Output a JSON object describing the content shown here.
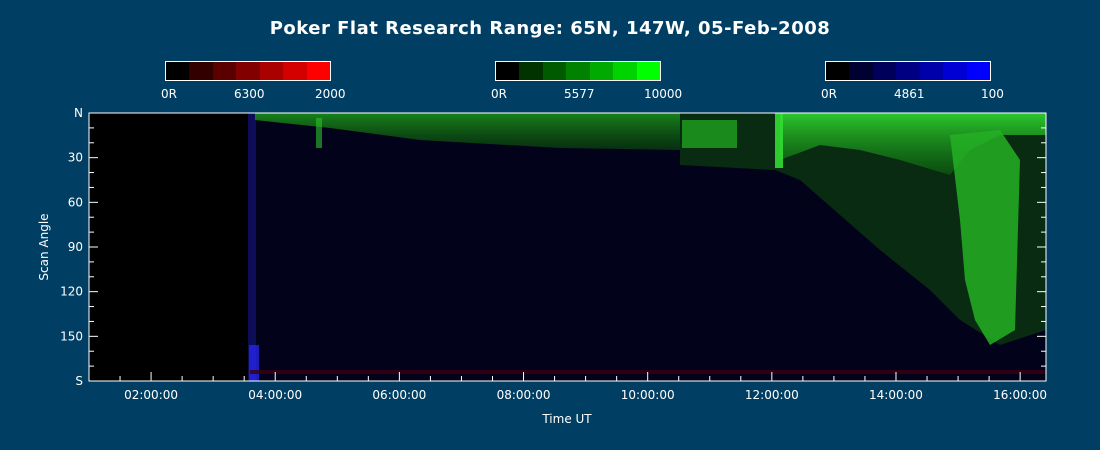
{
  "chart_data": {
    "type": "heatmap",
    "title": "Poker Flat Research Range: 65N, 147W, 05-Feb-2008",
    "xlabel": "Time UT",
    "ylabel": "Scan Angle",
    "x_ticks": [
      "02:00:00",
      "04:00:00",
      "06:00:00",
      "08:00:00",
      "10:00:00",
      "12:00:00",
      "14:00:00",
      "16:00:00"
    ],
    "y_ticks": [
      "N",
      "30",
      "60",
      "90",
      "120",
      "150",
      "S"
    ],
    "x_range": [
      "01:00:00",
      "16:25:00"
    ],
    "y_range": [
      0,
      180
    ],
    "data_start": "03:35:00",
    "colorbars": [
      {
        "channel": "6300",
        "min_label": "0R",
        "mid_label": "6300",
        "max_label": "2000",
        "color": "#ff0000"
      },
      {
        "channel": "5577",
        "min_label": "0R",
        "mid_label": "5577",
        "max_label": "10000",
        "color": "#00ff00"
      },
      {
        "channel": "4861",
        "min_label": "0R",
        "mid_label": "4861",
        "max_label": "100",
        "color": "#0000ff"
      }
    ]
  }
}
